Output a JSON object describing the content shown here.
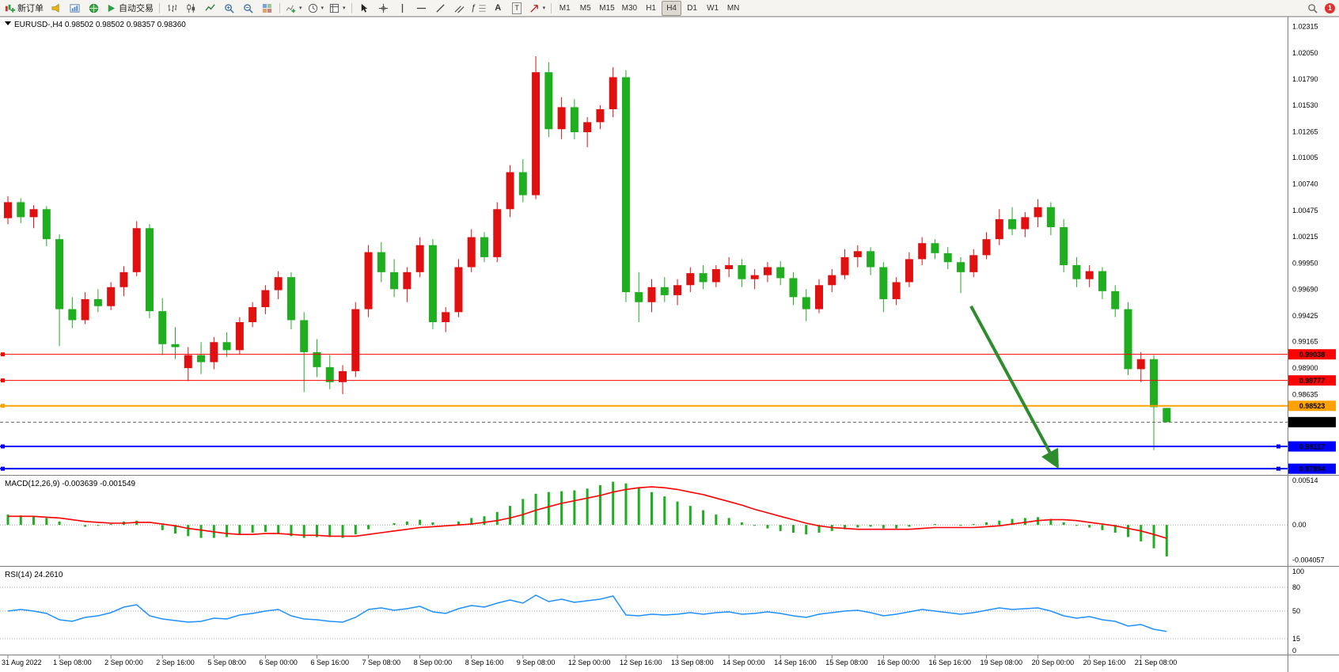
{
  "toolbar": {
    "new_order_label": "新订单",
    "auto_trading_label": "自动交易",
    "text_tool_label": "A",
    "label_tool_label": "T",
    "fibo_tool_label": "ƒ",
    "timeframes": [
      "M1",
      "M5",
      "M15",
      "M30",
      "H1",
      "H4",
      "D1",
      "W1",
      "MN"
    ],
    "active_timeframe": "H4",
    "notification_count": "1"
  },
  "chart": {
    "symbol_title": "EURUSD-,H4",
    "ohlc_text": "0.98502 0.98502 0.98357 0.98360"
  },
  "chart_data": [
    {
      "type": "candlestick",
      "symbol": "EURUSD",
      "timeframe": "H4",
      "up_color": "#e01010",
      "down_color": "#1fae1f",
      "ylim": [
        0.9784,
        1.024
      ],
      "axis_labels": [
        "1.02315",
        "1.02050",
        "1.01790",
        "1.01530",
        "1.01265",
        "1.01005",
        "1.00740",
        "1.00475",
        "1.00215",
        "0.99950",
        "0.99690",
        "0.99425",
        "0.99165",
        "0.98900",
        "0.98635"
      ],
      "x_labels": [
        "31 Aug 2022",
        "1 Sep 08:00",
        "2 Sep 00:00",
        "2 Sep 16:00",
        "5 Sep 08:00",
        "6 Sep 00:00",
        "6 Sep 16:00",
        "7 Sep 08:00",
        "8 Sep 00:00",
        "8 Sep 16:00",
        "9 Sep 08:00",
        "12 Sep 00:00",
        "12 Sep 16:00",
        "13 Sep 08:00",
        "14 Sep 00:00",
        "14 Sep 16:00",
        "15 Sep 08:00",
        "16 Sep 00:00",
        "16 Sep 16:00",
        "19 Sep 08:00",
        "20 Sep 00:00",
        "20 Sep 16:00",
        "21 Sep 08:00"
      ],
      "x_label_step": 4,
      "candles": [
        [
          1.004,
          1.0062,
          1.0034,
          1.0056
        ],
        [
          1.0056,
          1.006,
          1.0035,
          1.0041
        ],
        [
          1.0041,
          1.0053,
          1.003,
          1.0049
        ],
        [
          1.0049,
          1.0052,
          1.0012,
          1.0019
        ],
        [
          1.0019,
          1.0024,
          0.9912,
          0.9949
        ],
        [
          0.9949,
          0.9961,
          0.993,
          0.9938
        ],
        [
          0.9938,
          0.9966,
          0.9934,
          0.9959
        ],
        [
          0.9959,
          0.9969,
          0.9946,
          0.9952
        ],
        [
          0.9952,
          0.9976,
          0.9948,
          0.9971
        ],
        [
          0.9971,
          0.9992,
          0.9962,
          0.9986
        ],
        [
          0.9986,
          1.0037,
          0.9982,
          1.003
        ],
        [
          1.003,
          1.0034,
          0.994,
          0.9947
        ],
        [
          0.9947,
          0.996,
          0.9903,
          0.9914
        ],
        [
          0.9914,
          0.9931,
          0.9899,
          0.9911
        ],
        [
          0.989,
          0.9911,
          0.9877,
          0.9903
        ],
        [
          0.9903,
          0.9916,
          0.9884,
          0.9896
        ],
        [
          0.9896,
          0.9921,
          0.9889,
          0.9916
        ],
        [
          0.9916,
          0.9926,
          0.9901,
          0.9908
        ],
        [
          0.9908,
          0.9941,
          0.9904,
          0.9936
        ],
        [
          0.9936,
          0.9956,
          0.9931,
          0.9951
        ],
        [
          0.9951,
          0.9973,
          0.9944,
          0.9968
        ],
        [
          0.9968,
          0.9987,
          0.9959,
          0.9981
        ],
        [
          0.9981,
          0.9986,
          0.9929,
          0.9938
        ],
        [
          0.9938,
          0.9946,
          0.9866,
          0.9906
        ],
        [
          0.9906,
          0.9919,
          0.9881,
          0.9891
        ],
        [
          0.9891,
          0.9903,
          0.9869,
          0.9876
        ],
        [
          0.9876,
          0.9893,
          0.9864,
          0.9887
        ],
        [
          0.9887,
          0.9956,
          0.9881,
          0.9949
        ],
        [
          0.9949,
          1.0013,
          0.9941,
          1.0006
        ],
        [
          1.0006,
          1.0016,
          0.9976,
          0.9986
        ],
        [
          0.9986,
          0.9999,
          0.9961,
          0.9969
        ],
        [
          0.9969,
          0.9991,
          0.9956,
          0.9986
        ],
        [
          0.9986,
          1.0021,
          0.9981,
          1.0013
        ],
        [
          1.0013,
          1.0019,
          0.9929,
          0.9936
        ],
        [
          0.9936,
          0.9951,
          0.9926,
          0.9946
        ],
        [
          0.9946,
          0.9999,
          0.9941,
          0.9991
        ],
        [
          0.9991,
          1.0029,
          0.9986,
          1.0021
        ],
        [
          1.0021,
          1.0026,
          0.9996,
          1.0001
        ],
        [
          1.0001,
          1.0056,
          0.9996,
          1.0049
        ],
        [
          1.0049,
          1.0093,
          1.0041,
          1.0086
        ],
        [
          1.0086,
          1.0099,
          1.0056,
          1.0063
        ],
        [
          1.0063,
          1.0202,
          1.0059,
          1.0186
        ],
        [
          1.0186,
          1.0196,
          1.0121,
          1.0129
        ],
        [
          1.0129,
          1.0161,
          1.0119,
          1.0151
        ],
        [
          1.0151,
          1.0159,
          1.0119,
          1.0126
        ],
        [
          1.0126,
          1.0141,
          1.0111,
          1.0136
        ],
        [
          1.0136,
          1.0153,
          1.0129,
          1.0149
        ],
        [
          1.0149,
          1.0191,
          1.0141,
          1.0181
        ],
        [
          1.0181,
          1.0188,
          0.9956,
          0.9966
        ],
        [
          0.9966,
          0.9986,
          0.9936,
          0.9956
        ],
        [
          0.9956,
          0.9979,
          0.9946,
          0.9971
        ],
        [
          0.9971,
          0.9981,
          0.9956,
          0.9963
        ],
        [
          0.9963,
          0.9979,
          0.9953,
          0.9973
        ],
        [
          0.9973,
          0.9991,
          0.9966,
          0.9985
        ],
        [
          0.9985,
          0.9993,
          0.9969,
          0.9976
        ],
        [
          0.9976,
          0.9993,
          0.9971,
          0.9989
        ],
        [
          0.9989,
          1.0001,
          0.9981,
          0.9993
        ],
        [
          0.9993,
          0.9999,
          0.9971,
          0.9979
        ],
        [
          0.9979,
          0.9989,
          0.9969,
          0.9983
        ],
        [
          0.9983,
          0.9996,
          0.9976,
          0.9991
        ],
        [
          0.9991,
          0.9997,
          0.9973,
          0.998
        ],
        [
          0.998,
          0.9986,
          0.9953,
          0.9961
        ],
        [
          0.9961,
          0.9969,
          0.9937,
          0.9949
        ],
        [
          0.9949,
          0.9979,
          0.9945,
          0.9973
        ],
        [
          0.9973,
          0.9989,
          0.9966,
          0.9983
        ],
        [
          0.9983,
          1.0009,
          0.9979,
          1.0001
        ],
        [
          1.0001,
          1.0013,
          0.9991,
          1.0007
        ],
        [
          1.0007,
          1.0011,
          0.9983,
          0.9991
        ],
        [
          0.9991,
          0.9996,
          0.9946,
          0.9959
        ],
        [
          0.9959,
          0.9981,
          0.9953,
          0.9976
        ],
        [
          0.9976,
          1.0006,
          0.9971,
          0.9999
        ],
        [
          0.9999,
          1.0021,
          0.9993,
          1.0015
        ],
        [
          1.0015,
          1.0019,
          0.9999,
          1.0005
        ],
        [
          1.0005,
          1.0011,
          0.9989,
          0.9996
        ],
        [
          0.9996,
          1.0001,
          0.9965,
          0.9986
        ],
        [
          0.9986,
          1.0009,
          0.9981,
          1.0003
        ],
        [
          1.0003,
          1.0026,
          0.9999,
          1.0019
        ],
        [
          1.0019,
          1.0049,
          1.0013,
          1.0039
        ],
        [
          1.0039,
          1.0051,
          1.0023,
          1.0029
        ],
        [
          1.0029,
          1.0046,
          1.0021,
          1.0041
        ],
        [
          1.0041,
          1.0059,
          1.0031,
          1.0051
        ],
        [
          1.0051,
          1.0056,
          1.0023,
          1.0031
        ],
        [
          1.0031,
          1.0039,
          0.9986,
          0.9993
        ],
        [
          0.9993,
          1.0001,
          0.9971,
          0.9979
        ],
        [
          0.9979,
          0.9993,
          0.9971,
          0.9987
        ],
        [
          0.9987,
          0.9991,
          0.9959,
          0.9967
        ],
        [
          0.9967,
          0.9973,
          0.9941,
          0.9949
        ],
        [
          0.9949,
          0.9956,
          0.9883,
          0.9889
        ],
        [
          0.9889,
          0.9906,
          0.9876,
          0.9899
        ],
        [
          0.9899,
          0.9903,
          0.9808,
          0.9851
        ],
        [
          0.98502,
          0.98502,
          0.98357,
          0.9836
        ]
      ],
      "hlines": [
        {
          "price": 0.99038,
          "label": "0.99038",
          "color": "#ff0000",
          "width": 1,
          "handles": "left"
        },
        {
          "price": 0.98777,
          "label": "0.98777",
          "color": "#ff0000",
          "width": 1,
          "handles": "left"
        },
        {
          "price": 0.98523,
          "label": "0.98523",
          "color": "#ffa200",
          "width": 2,
          "handles": "left"
        },
        {
          "price": 0.98117,
          "label": "0.98117",
          "color": "#0000ff",
          "width": 2,
          "handles": "both"
        },
        {
          "price": 0.97894,
          "label": "0.97894",
          "color": "#0000ff",
          "width": 2,
          "handles": "both"
        }
      ],
      "current_price": {
        "price": 0.9836,
        "label": "0.98360",
        "color": "#000000"
      },
      "arrow": {
        "from_index": 74.8,
        "from_price": 0.9952,
        "to_index": 81.5,
        "to_price": 0.9792,
        "color": "#2e8b2e"
      }
    },
    {
      "type": "bar",
      "name": "MACD(12,26,9)",
      "values_text": "-0.003639 -0.001549",
      "histogram_color": "#1fae1f",
      "signal_color": "#ff0000",
      "ylim": [
        -0.00465,
        0.0056
      ],
      "axis_labels": [
        {
          "v": 0.00514,
          "label": "0.00514"
        },
        {
          "v": 0,
          "label": "0.00"
        },
        {
          "v": -0.004057,
          "label": "-0.004057"
        }
      ],
      "histogram": [
        0.0012,
        0.0011,
        0.001,
        0.0008,
        0.0004,
        0.0,
        -0.0002,
        -0.0001,
        0.0001,
        0.0004,
        0.0005,
        0.0,
        -0.0006,
        -0.001,
        -0.0013,
        -0.0015,
        -0.0015,
        -0.0014,
        -0.0011,
        -0.0009,
        -0.0008,
        -0.001,
        -0.0013,
        -0.0015,
        -0.0014,
        -0.0014,
        -0.0015,
        -0.0011,
        -0.0005,
        0.0,
        0.0002,
        0.0004,
        0.0006,
        0.0003,
        0.0,
        0.0004,
        0.0008,
        0.001,
        0.0015,
        0.0022,
        0.003,
        0.0036,
        0.0038,
        0.0039,
        0.004,
        0.0042,
        0.0046,
        0.005,
        0.0048,
        0.0043,
        0.0038,
        0.0033,
        0.0027,
        0.0022,
        0.0017,
        0.0012,
        0.0008,
        0.0003,
        -0.0001,
        -0.0004,
        -0.0007,
        -0.0009,
        -0.0011,
        -0.0009,
        -0.0007,
        -0.0005,
        -0.0003,
        -0.0002,
        -0.0004,
        -0.0004,
        -0.0002,
        0.0,
        0.0001,
        0.0,
        -0.0001,
        0.0001,
        0.0003,
        0.0005,
        0.0007,
        0.0008,
        0.0009,
        0.0007,
        0.0003,
        -0.0001,
        -0.0003,
        -0.0006,
        -0.0009,
        -0.0014,
        -0.0019,
        -0.0027,
        -0.003639
      ],
      "signal": [
        0.001,
        0.001,
        0.001,
        0.0009,
        0.0008,
        0.0006,
        0.0004,
        0.0003,
        0.0002,
        0.0002,
        0.0003,
        0.0003,
        0.0001,
        -0.0001,
        -0.0004,
        -0.0006,
        -0.0008,
        -0.001,
        -0.0011,
        -0.0011,
        -0.001,
        -0.001,
        -0.0011,
        -0.0012,
        -0.0012,
        -0.0013,
        -0.0013,
        -0.0013,
        -0.0011,
        -0.0009,
        -0.0007,
        -0.0005,
        -0.0003,
        -0.0002,
        -0.0001,
        0.0,
        0.0001,
        0.0003,
        0.0005,
        0.0008,
        0.0012,
        0.0017,
        0.0021,
        0.0025,
        0.0028,
        0.0031,
        0.0034,
        0.0038,
        0.0041,
        0.0043,
        0.0044,
        0.0043,
        0.0041,
        0.0038,
        0.0035,
        0.0031,
        0.0027,
        0.0023,
        0.0018,
        0.0014,
        0.001,
        0.0006,
        0.0002,
        -0.0001,
        -0.0003,
        -0.0004,
        -0.0005,
        -0.0005,
        -0.0005,
        -0.0005,
        -0.0005,
        -0.0004,
        -0.0003,
        -0.0003,
        -0.0003,
        -0.0003,
        -0.0002,
        -0.0001,
        0.0001,
        0.0003,
        0.0005,
        0.0006,
        0.0006,
        0.0005,
        0.0003,
        0.0001,
        -0.0001,
        -0.0004,
        -0.0007,
        -0.0011,
        -0.001549
      ]
    },
    {
      "type": "line",
      "name": "RSI(14)",
      "value_text": "24.2610",
      "color": "#1e90ff",
      "ylim": [
        -5,
        105
      ],
      "levels": [
        80,
        50,
        15
      ],
      "axis_labels": [
        {
          "v": 100,
          "label": "100"
        },
        {
          "v": 80,
          "label": "80"
        },
        {
          "v": 50,
          "label": "50"
        },
        {
          "v": 15,
          "label": "15"
        },
        {
          "v": 0,
          "label": "0"
        }
      ],
      "values": [
        50,
        52,
        50,
        47,
        39,
        37,
        42,
        44,
        48,
        55,
        58,
        44,
        40,
        38,
        36,
        37,
        41,
        40,
        45,
        47,
        50,
        52,
        44,
        40,
        39,
        37,
        36,
        42,
        52,
        54,
        51,
        53,
        56,
        49,
        47,
        53,
        57,
        55,
        60,
        64,
        60,
        70,
        62,
        65,
        61,
        63,
        65,
        69,
        45,
        44,
        46,
        45,
        46,
        48,
        46,
        48,
        49,
        46,
        47,
        49,
        47,
        44,
        42,
        46,
        48,
        50,
        51,
        48,
        44,
        46,
        49,
        52,
        50,
        48,
        46,
        48,
        51,
        54,
        52,
        53,
        54,
        50,
        44,
        41,
        43,
        39,
        37,
        31,
        33,
        27,
        24.261
      ]
    }
  ]
}
